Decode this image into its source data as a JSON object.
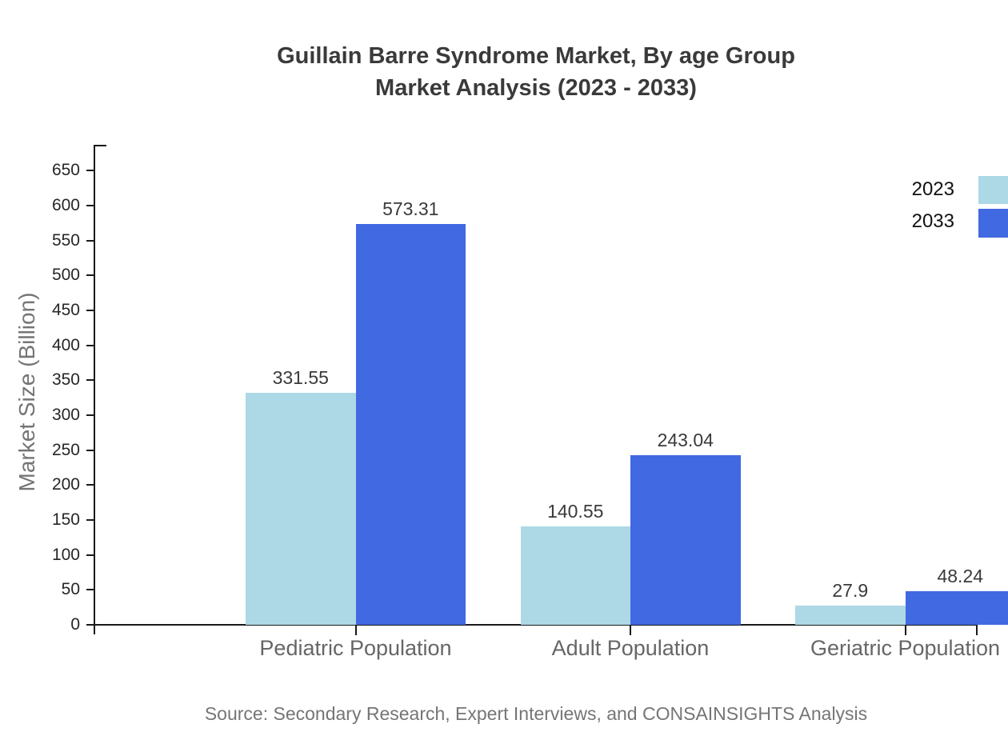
{
  "title": {
    "line1": "Guillain Barre Syndrome Market, By age Group",
    "line2": "Market Analysis (2023 - 2033)"
  },
  "chart_data": {
    "type": "bar",
    "title": "Guillain Barre Syndrome Market, By age Group Market Analysis (2023 - 2033)",
    "categories": [
      "Pediatric Population",
      "Adult Population",
      "Geriatric Population"
    ],
    "series": [
      {
        "name": "2023",
        "color": "#ADD8E6",
        "values": [
          331.55,
          140.55,
          27.9
        ]
      },
      {
        "name": "2033",
        "color": "#4169E1",
        "values": [
          573.31,
          243.04,
          48.24
        ]
      }
    ],
    "xlabel": "",
    "ylabel": "Market Size (Billion)",
    "ylim": [
      0,
      687
    ],
    "yticks": {
      "start": 0,
      "end": 650,
      "step": 50
    },
    "grid": false,
    "bar_value_labels": true,
    "legend_position": "top-right"
  },
  "colors": {
    "axis": "#1a1a1a",
    "tick_label": "#262626",
    "category_label": "#666666",
    "value_label": "#3a3a3a",
    "title": "#3a3a3a",
    "ylabel": "#757575",
    "source": "#757575"
  },
  "source": {
    "text": "Source: Secondary Research, Expert Interviews, and CONSAINSIGHTS Analysis"
  }
}
